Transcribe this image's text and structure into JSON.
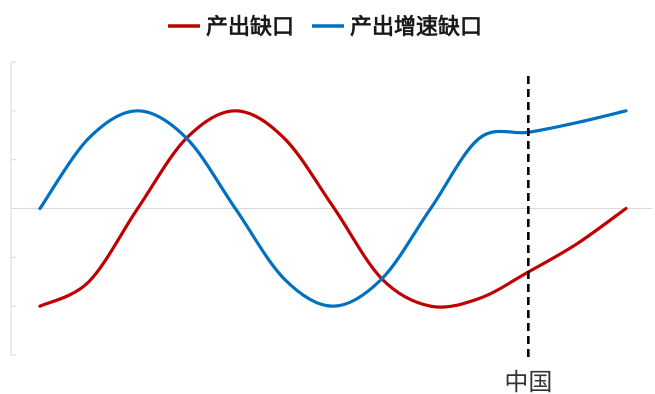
{
  "chart_data": {
    "type": "line",
    "title": "",
    "xlabel": "",
    "ylabel": "",
    "x": [
      0,
      1,
      2,
      3,
      4,
      5,
      6,
      7,
      8,
      9,
      10,
      11,
      12
    ],
    "ylim": [
      -1.5,
      1.5
    ],
    "y_ticks": [
      -1.5,
      -1,
      -0.5,
      0,
      0.5,
      1,
      1.5
    ],
    "grid": false,
    "zero_line": true,
    "legend_position": "top-center",
    "series": [
      {
        "name": "产出缺口",
        "color": "#C00000",
        "values": [
          -1.0,
          -0.75,
          0.0,
          0.72,
          1.0,
          0.72,
          0.02,
          -0.72,
          -1.0,
          -0.92,
          -0.65,
          -0.36,
          0.0
        ]
      },
      {
        "name": "产出增速缺口",
        "color": "#0070C0",
        "values": [
          0.0,
          0.72,
          1.0,
          0.72,
          0.0,
          -0.72,
          -1.0,
          -0.72,
          0.0,
          0.72,
          0.78,
          0.88,
          1.0
        ]
      }
    ],
    "annotations": [
      {
        "label": "中国",
        "x": 10.0,
        "style": "dashed-vertical-line",
        "color": "#000000"
      }
    ]
  }
}
